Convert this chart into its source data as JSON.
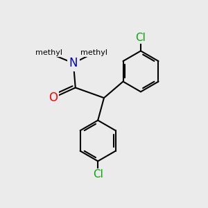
{
  "background_color": "#EBEBEB",
  "bond_color": "#000000",
  "bond_width": 1.5,
  "atom_colors": {
    "N": "#0000CC",
    "O": "#FF0000",
    "Cl": "#00AA00"
  },
  "figsize": [
    3.0,
    3.0
  ],
  "dpi": 100
}
